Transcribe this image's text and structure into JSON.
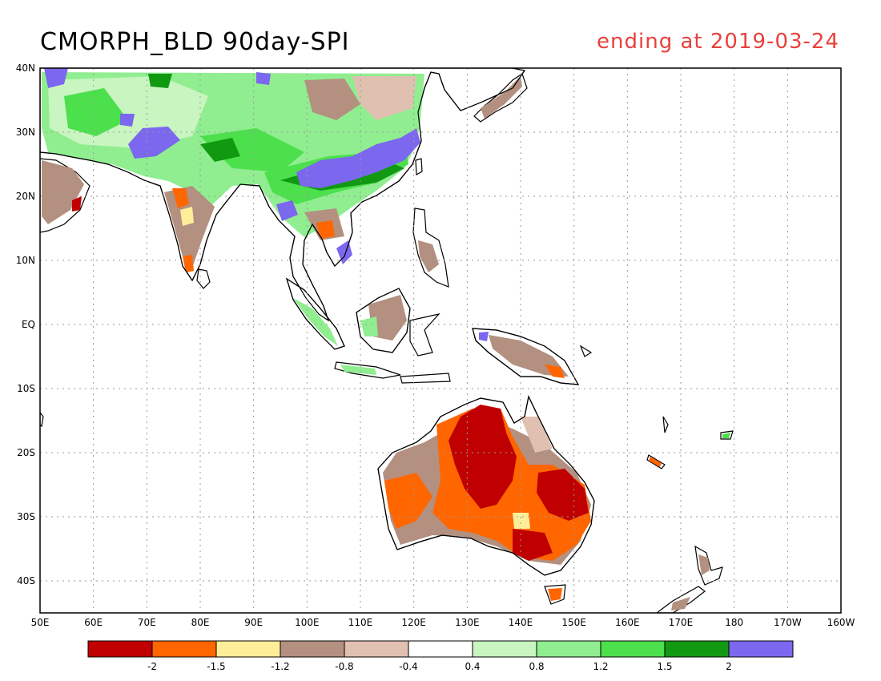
{
  "title": "CMORPH_BLD 90day-SPI",
  "subtitle": "ending at 2019-03-24",
  "colors": {
    "subtitle": "#e8413c",
    "dry_extreme": "#c00000",
    "dry_severe": "#ff6600",
    "dry_moderate": "#ffee99",
    "dry_mild": "#b39080",
    "dry_slight": "#e0c0b0",
    "normal": "#ffffff",
    "wet_slight": "#c8f5c0",
    "wet_mild": "#90ee90",
    "wet_moderate": "#4ce04c",
    "wet_severe": "#129912",
    "wet_extreme": "#7b68ee"
  },
  "map": {
    "lon_range": [
      50,
      200
    ],
    "lat_range": [
      -45,
      40
    ],
    "x_ticks": [
      "50E",
      "60E",
      "70E",
      "80E",
      "90E",
      "100E",
      "110E",
      "120E",
      "130E",
      "140E",
      "150E",
      "160E",
      "170E",
      "180",
      "170W",
      "160W"
    ],
    "y_ticks": [
      "40N",
      "30N",
      "20N",
      "10N",
      "EQ",
      "10S",
      "20S",
      "30S",
      "40S"
    ]
  },
  "legend": {
    "colors": [
      "#c00000",
      "#ff6600",
      "#ffee99",
      "#b39080",
      "#e0c0b0",
      "#ffffff",
      "#c8f5c0",
      "#90ee90",
      "#4ce04c",
      "#129912",
      "#7b68ee"
    ],
    "labels": [
      "-2",
      "-1.5",
      "-1.2",
      "-0.8",
      "-0.4",
      "0.4",
      "0.8",
      "1.2",
      "1.5",
      "2"
    ]
  }
}
